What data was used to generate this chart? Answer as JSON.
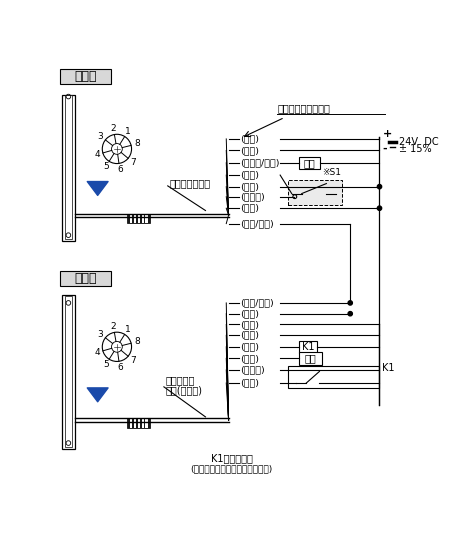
{
  "title_top": "投光器",
  "title_bottom": "受光器",
  "cable_label_top": "電線顏色：灰色",
  "cable_label_bottom_1": "電線顏色：",
  "cable_label_bottom_2": "灰色(帶黑線)",
  "wire_label_header": "連接電線的導線顏色",
  "top_wires": [
    "(褐色)",
    "(屏蔽)",
    "(黃綠色/黑色)",
    "(粉色)",
    "(藍色)",
    "(淡紫色)",
    "(橙色)",
    "(橙色/黑色)"
  ],
  "bottom_wires": [
    "(橙色/黑色)",
    "(橙色)",
    "(褐色)",
    "(屏蔽)",
    "(黑色)",
    "(白色)",
    "(黃綠色)",
    "(藍色)"
  ],
  "voltage_line1": "24V  DC",
  "voltage_line2": "± 15%",
  "load_label": "負載",
  "s1_label": "※S1",
  "k1_label": "K1",
  "k1_load_label": "負載",
  "k1_desc_1": "K1：外部設備",
  "k1_desc_2": "(強制導軌式繼電器或磁性接觸器)",
  "bg_color": "#ffffff",
  "line_color": "#000000",
  "title_bg": "#d8d8d8",
  "arrow_color": "#1a4aaa",
  "pin_labels": [
    "1",
    "2",
    "3",
    "4",
    "5",
    "6",
    "7",
    "8"
  ],
  "pin_angles": [
    58,
    100,
    142,
    196,
    238,
    278,
    320,
    14
  ]
}
